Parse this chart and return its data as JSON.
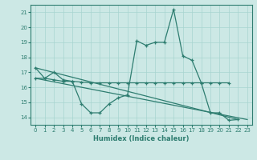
{
  "xlabel": "Humidex (Indice chaleur)",
  "x_values": [
    0,
    1,
    2,
    3,
    4,
    5,
    6,
    7,
    8,
    9,
    10,
    11,
    12,
    13,
    14,
    15,
    16,
    17,
    18,
    19,
    20,
    21,
    22,
    23
  ],
  "line1": [
    17.3,
    16.6,
    17.0,
    16.5,
    16.4,
    14.9,
    14.3,
    14.3,
    14.9,
    15.3,
    15.5,
    19.1,
    18.8,
    19.0,
    19.0,
    21.2,
    18.1,
    17.8,
    16.3,
    14.3,
    14.3,
    13.8,
    13.85,
    null
  ],
  "line2_x": [
    0,
    1,
    2,
    3,
    4,
    5,
    6,
    7,
    8,
    9,
    10,
    11,
    12,
    13,
    14,
    15,
    16,
    17,
    18,
    19,
    20,
    21
  ],
  "line2_y": [
    16.6,
    16.6,
    16.5,
    16.4,
    16.4,
    16.35,
    16.3,
    16.3,
    16.3,
    16.3,
    16.3,
    16.3,
    16.3,
    16.3,
    16.3,
    16.3,
    16.3,
    16.3,
    16.3,
    16.3,
    16.3,
    16.3
  ],
  "line3_x": [
    0,
    22
  ],
  "line3_y": [
    17.3,
    13.85
  ],
  "line4_x": [
    0,
    23
  ],
  "line4_y": [
    16.6,
    13.85
  ],
  "color": "#2e7d70",
  "bg_color": "#cce8e5",
  "grid_color": "#a8d4d0",
  "ylim": [
    13.5,
    21.5
  ],
  "xlim": [
    -0.5,
    23.5
  ],
  "yticks": [
    14,
    15,
    16,
    17,
    18,
    19,
    20,
    21
  ],
  "xticks": [
    0,
    1,
    2,
    3,
    4,
    5,
    6,
    7,
    8,
    9,
    10,
    11,
    12,
    13,
    14,
    15,
    16,
    17,
    18,
    19,
    20,
    21,
    22,
    23
  ]
}
